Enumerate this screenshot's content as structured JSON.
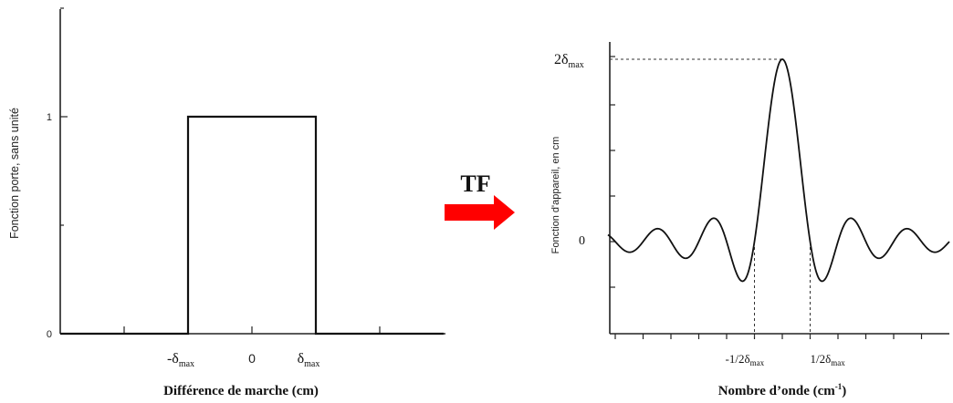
{
  "left_chart": {
    "ylabel": "Fonction porte, sans unité",
    "xlabel": "Différence de marche (cm)",
    "y_ticks": [
      {
        "value": 0,
        "label": "0"
      },
      {
        "value": 1,
        "label": "1"
      }
    ],
    "x_tick_labels": [
      {
        "pos": -1,
        "main": "-δ",
        "sub": "max"
      },
      {
        "pos": 0,
        "main": "0",
        "sub": ""
      },
      {
        "pos": 1,
        "main": "δ",
        "sub": "max"
      }
    ]
  },
  "transform": {
    "label": "TF",
    "arrow_color": "#ff0000"
  },
  "right_chart": {
    "ylabel": "Fonction d'appareil, en cm",
    "xlabel_main": "Nombre d’onde (cm",
    "xlabel_sup": "-1",
    "xlabel_end": ")",
    "y_zero_label": "0",
    "y_peak_label_main": "2δ",
    "y_peak_label_sub": "max",
    "x_tick_labels": [
      {
        "main": "-1/2δ",
        "sub": "max"
      },
      {
        "main": "1/2δ",
        "sub": "max"
      }
    ]
  },
  "chart_data": [
    {
      "type": "line",
      "name_hint": "gate-function",
      "x": [
        -3,
        -1,
        -1,
        1,
        1,
        3
      ],
      "y": [
        0,
        0,
        1,
        1,
        0,
        0
      ],
      "xlim": [
        -3,
        3
      ],
      "ylim": [
        0,
        1.5
      ],
      "grid": false
    },
    {
      "type": "line",
      "name_hint": "apparatus-function-sinc",
      "function": "2*sinc(2*x)",
      "xlim": [
        -3.8,
        3.8
      ],
      "ylim": [
        -0.72,
        2.05
      ],
      "peak_value": 2,
      "zero_crossings": [
        -0.5,
        0.5
      ],
      "grid": false
    }
  ]
}
